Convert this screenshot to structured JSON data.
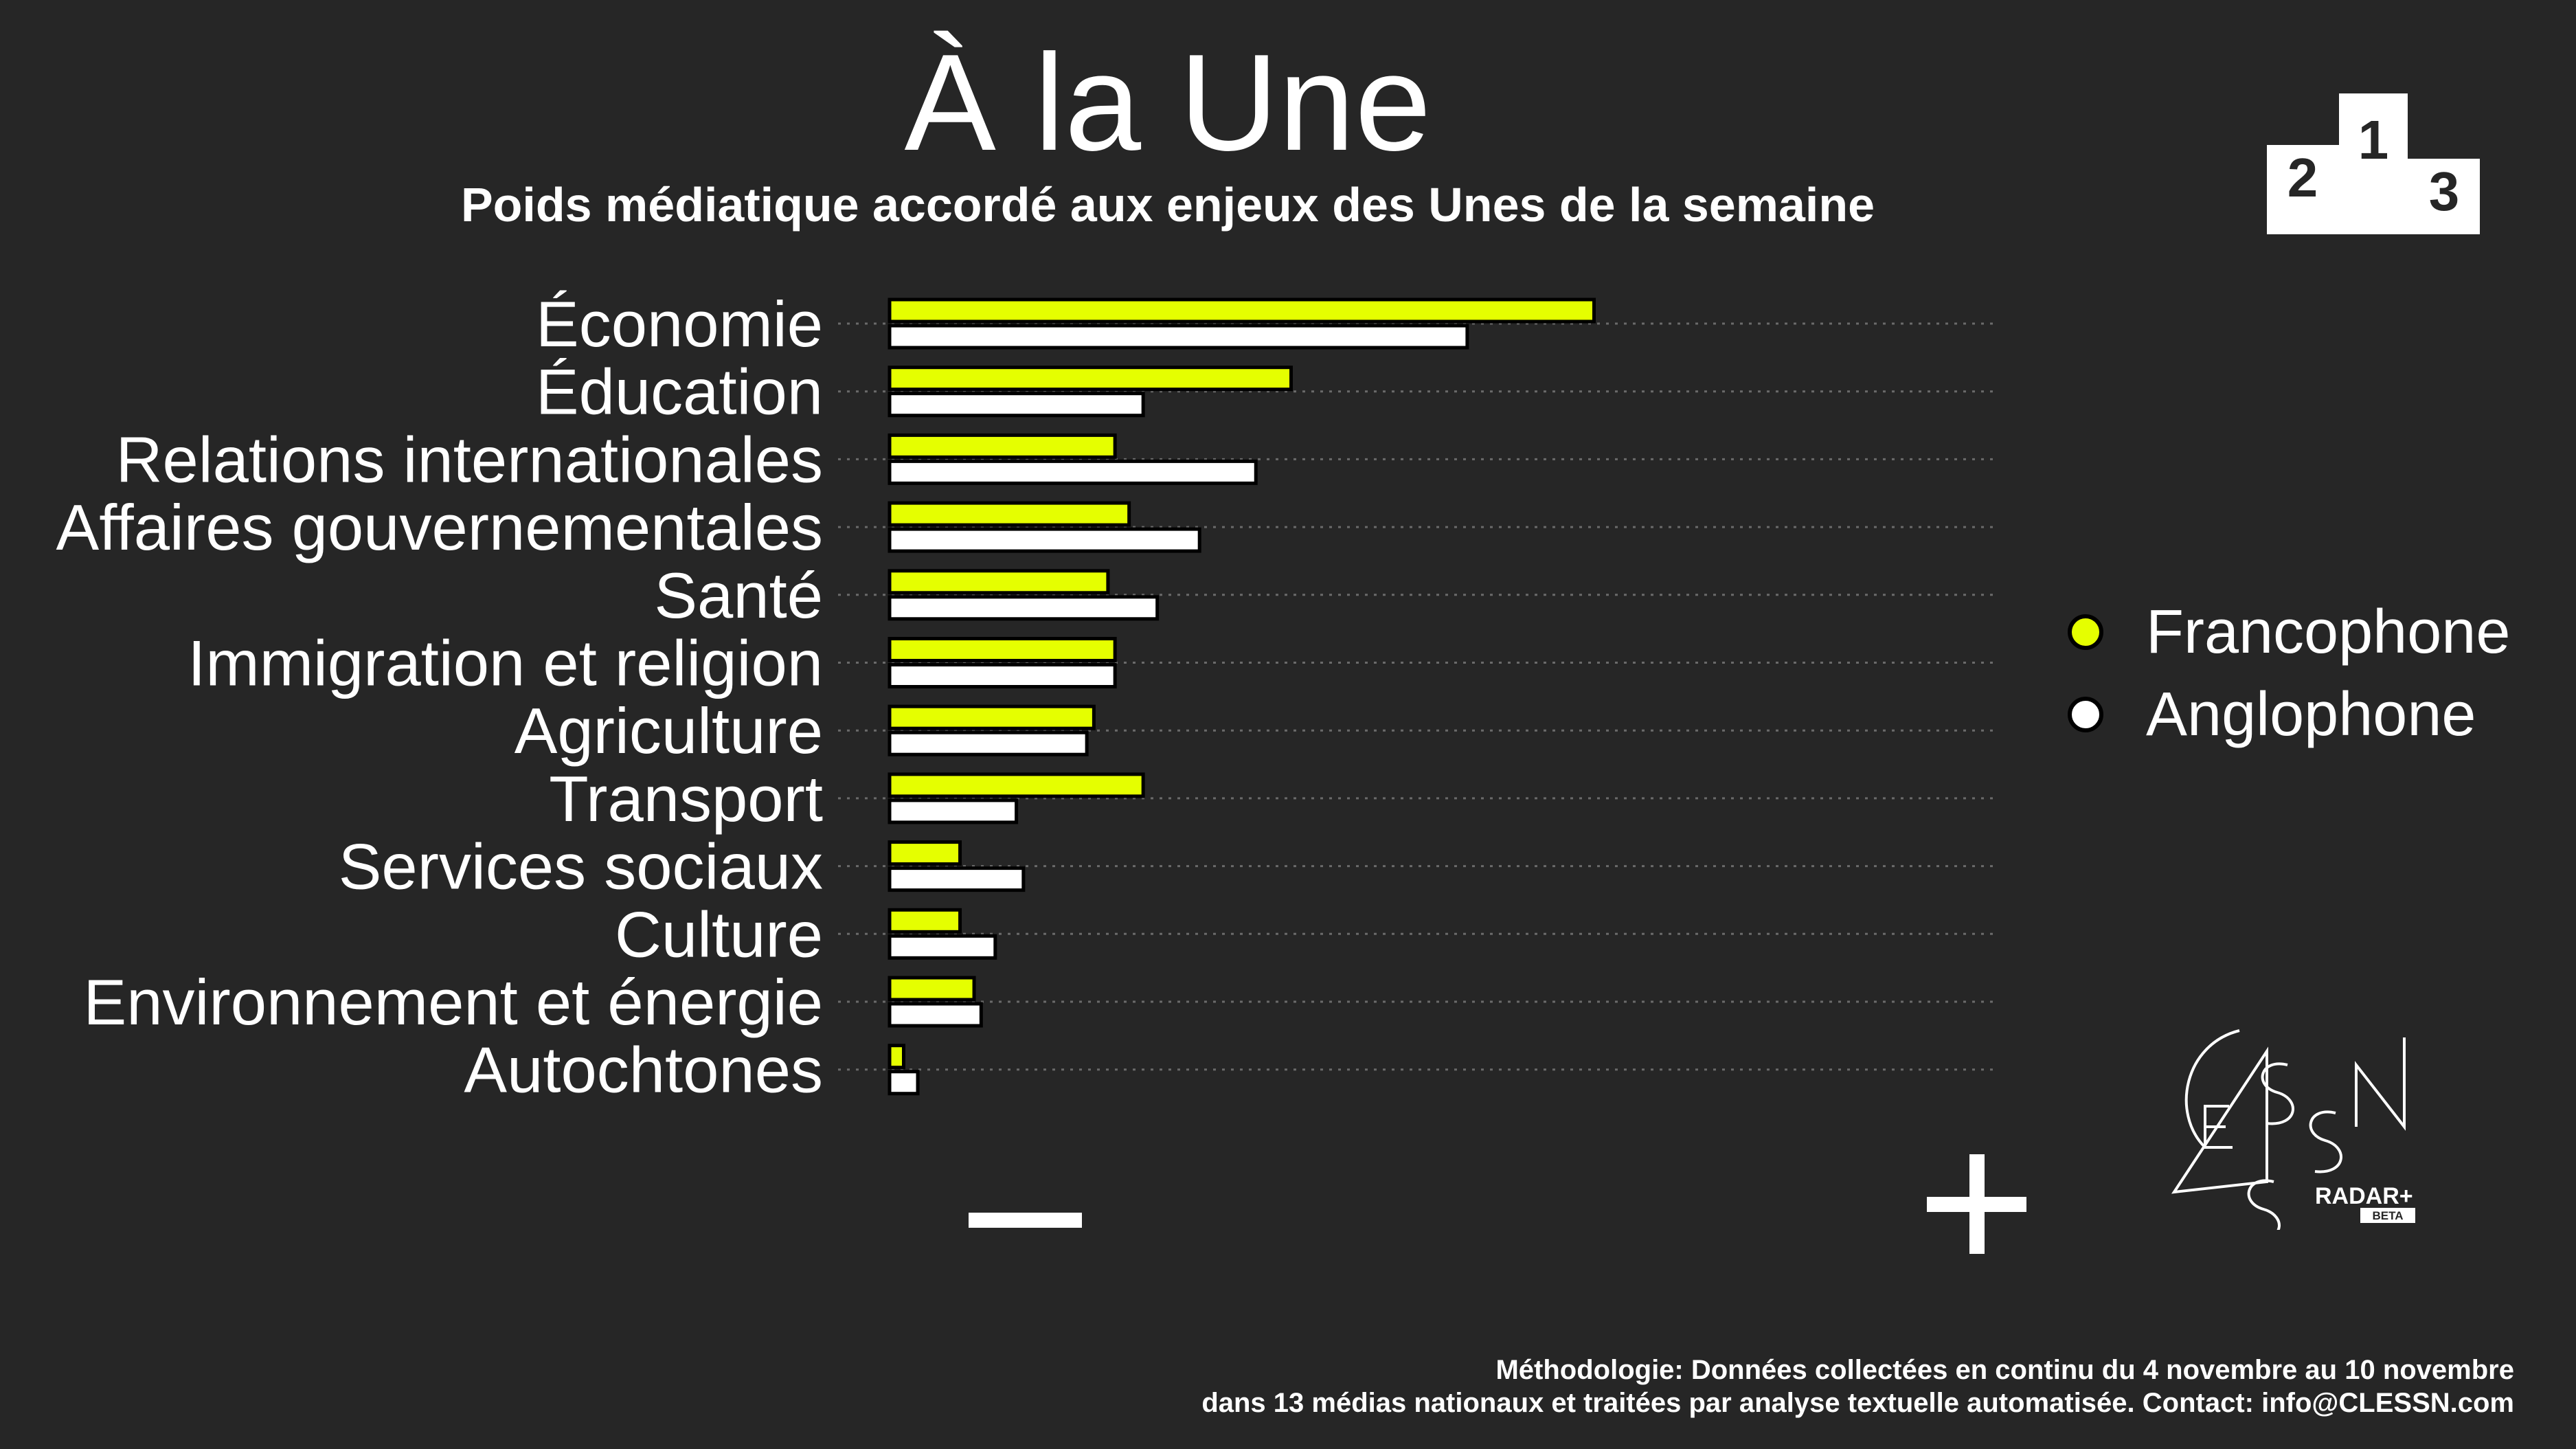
{
  "header": {
    "title": "À la Une",
    "subtitle": "Poids médiatique accordé aux enjeux des Unes de la semaine"
  },
  "podium_icon": {
    "icon": "podium-icon",
    "labels": [
      "2",
      "1",
      "3"
    ]
  },
  "chart_data": {
    "type": "bar",
    "orientation": "horizontal",
    "categories": [
      "Économie",
      "Éducation",
      "Relations internationales",
      "Affaires gouvernementales",
      "Santé",
      "Immigration et religion",
      "Agriculture",
      "Transport",
      "Services sociaux",
      "Culture",
      "Environnement et énergie",
      "Autochtones"
    ],
    "series": [
      {
        "name": "Francophone",
        "color": "#e5ff00",
        "values": [
          100,
          57,
          32,
          34,
          31,
          32,
          29,
          36,
          10,
          10,
          12,
          2
        ]
      },
      {
        "name": "Anglophone",
        "color": "#ffffff",
        "values": [
          82,
          36,
          52,
          44,
          38,
          32,
          28,
          18,
          19,
          15,
          13,
          4
        ]
      }
    ],
    "xlim": [
      0,
      157
    ],
    "axis_min_label": "−",
    "axis_max_label": "+",
    "x_tick_labels": "none",
    "grid": "dotted horizontal lines",
    "legend_placement": "right"
  },
  "logo": {
    "lettering": "CLESSN",
    "product": "RADAR+",
    "badge": "BETA"
  },
  "footer": {
    "line1": "Méthodologie: Données collectées en continu du 4 novembre au 10 novembre",
    "line2": "dans 13 médias nationaux et traitées par analyse textuelle automatisée. Contact: info@CLESSN.com"
  },
  "colors": {
    "background": "#262626",
    "francophone": "#e5ff00",
    "anglophone": "#ffffff",
    "bar_outline": "#000000"
  }
}
